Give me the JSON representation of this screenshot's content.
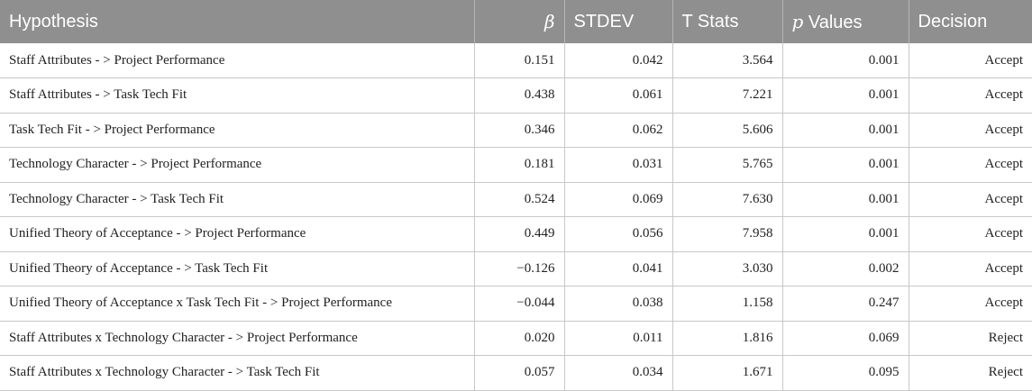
{
  "table": {
    "headers": {
      "hypothesis": "Hypothesis",
      "beta": "β",
      "stdev": "STDEV",
      "tstats": "T Stats",
      "p_symbol": "p",
      "p_rest": " Values",
      "decision": "Decision"
    },
    "rows": [
      {
        "hypothesis": "Staff Attributes - > Project Performance",
        "beta": "0.151",
        "stdev": "0.042",
        "t": "3.564",
        "p": "0.001",
        "decision": "Accept"
      },
      {
        "hypothesis": "Staff Attributes - > Task Tech Fit",
        "beta": "0.438",
        "stdev": "0.061",
        "t": "7.221",
        "p": "0.001",
        "decision": "Accept"
      },
      {
        "hypothesis": "Task Tech Fit - > Project Performance",
        "beta": "0.346",
        "stdev": "0.062",
        "t": "5.606",
        "p": "0.001",
        "decision": "Accept"
      },
      {
        "hypothesis": "Technology Character - > Project Performance",
        "beta": "0.181",
        "stdev": "0.031",
        "t": "5.765",
        "p": "0.001",
        "decision": "Accept"
      },
      {
        "hypothesis": "Technology Character - > Task Tech Fit",
        "beta": "0.524",
        "stdev": "0.069",
        "t": "7.630",
        "p": "0.001",
        "decision": "Accept"
      },
      {
        "hypothesis": "Unified Theory of Acceptance - > Project Performance",
        "beta": "0.449",
        "stdev": "0.056",
        "t": "7.958",
        "p": "0.001",
        "decision": "Accept"
      },
      {
        "hypothesis": "Unified Theory of Acceptance - > Task Tech Fit",
        "beta": "−0.126",
        "stdev": "0.041",
        "t": "3.030",
        "p": "0.002",
        "decision": "Accept"
      },
      {
        "hypothesis": "Unified Theory of Acceptance x Task Tech Fit - > Project Performance",
        "beta": "−0.044",
        "stdev": "0.038",
        "t": "1.158",
        "p": "0.247",
        "decision": "Accept"
      },
      {
        "hypothesis": "Staff Attributes x Technology Character - > Project Performance",
        "beta": "0.020",
        "stdev": "0.011",
        "t": "1.816",
        "p": "0.069",
        "decision": "Reject"
      },
      {
        "hypothesis": "Staff Attributes x Technology Character - > Task Tech Fit",
        "beta": "0.057",
        "stdev": "0.034",
        "t": "1.671",
        "p": "0.095",
        "decision": "Reject"
      }
    ]
  },
  "colors": {
    "header_bg": "#8f8f8f",
    "header_text": "#ffffff",
    "grid": "#c8c8c8"
  }
}
